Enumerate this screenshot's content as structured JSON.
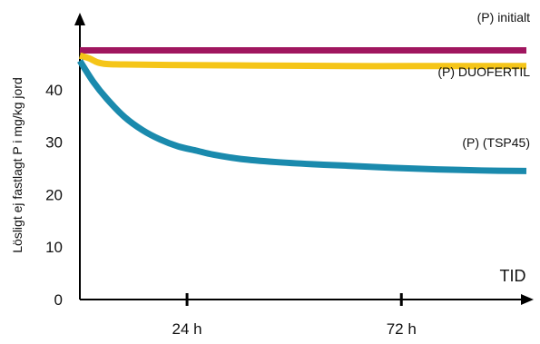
{
  "chart_data": {
    "type": "line",
    "title": "",
    "xlabel": "TID",
    "ylabel": "Lösligt ej fastlagt P i mg/kg jord",
    "ylim": [
      0,
      50
    ],
    "xlim": [
      0,
      100
    ],
    "yticks": [
      0,
      10,
      20,
      30,
      40
    ],
    "xticks": [
      {
        "value": 24,
        "label": "24 h"
      },
      {
        "value": 72,
        "label": "72 h"
      }
    ],
    "grid": false,
    "legend": "inline labels",
    "series": [
      {
        "name": "(P) initialt",
        "color": "#a0165f",
        "x": [
          0,
          100
        ],
        "y": [
          47.5,
          47.5
        ]
      },
      {
        "name": "(P) DUOFERTIL",
        "color": "#f5c518",
        "x": [
          0,
          2,
          4,
          6,
          10,
          20,
          40,
          60,
          80,
          100
        ],
        "y": [
          46.5,
          46.0,
          45.2,
          44.9,
          44.8,
          44.7,
          44.6,
          44.5,
          44.5,
          44.5
        ]
      },
      {
        "name": "(P) (TSP45)",
        "color": "#1a8aad",
        "x": [
          0,
          3,
          6,
          10,
          14,
          18,
          22,
          26,
          30,
          36,
          44,
          52,
          60,
          70,
          80,
          90,
          100
        ],
        "y": [
          45.5,
          41.5,
          38.3,
          34.8,
          32.3,
          30.5,
          29.2,
          28.4,
          27.6,
          26.8,
          26.2,
          25.8,
          25.5,
          25.1,
          24.8,
          24.6,
          24.5
        ]
      }
    ]
  }
}
